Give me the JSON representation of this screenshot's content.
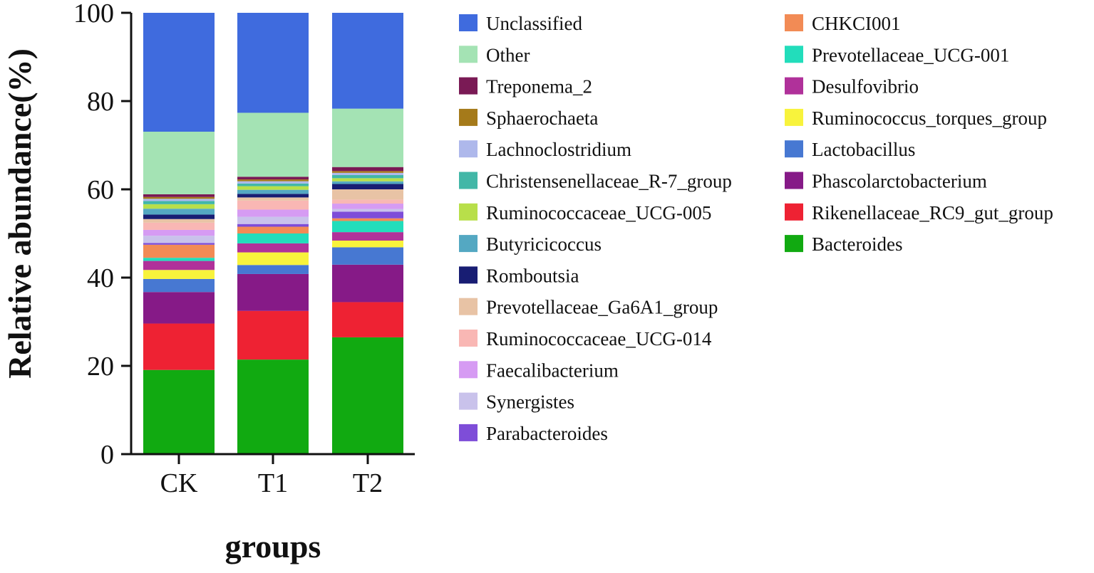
{
  "chart_data": {
    "type": "bar",
    "stacked": true,
    "xlabel": "groups",
    "ylabel": "Relative abundance(%)",
    "ylim": [
      0,
      100
    ],
    "yticks": [
      0,
      20,
      40,
      60,
      80,
      100
    ],
    "categories": [
      "CK",
      "T1",
      "T2"
    ],
    "legend_position": "right",
    "series": [
      {
        "name": "Bacteroides",
        "color": "#11AA11",
        "values": [
          18.7,
          21.0,
          26.2
        ]
      },
      {
        "name": "Rikenellaceae_RC9_gut_group",
        "color": "#EE2233",
        "values": [
          10.3,
          10.8,
          7.9
        ]
      },
      {
        "name": "Phascolarctobacterium",
        "color": "#861A87",
        "values": [
          7.0,
          8.2,
          8.4
        ]
      },
      {
        "name": "Lactobacillus",
        "color": "#4778D2",
        "values": [
          2.9,
          2.0,
          3.9
        ]
      },
      {
        "name": "Ruminococcus_torques_group",
        "color": "#F8F33C",
        "values": [
          2.0,
          2.8,
          1.5
        ]
      },
      {
        "name": "Desulfovibrio",
        "color": "#B0319A",
        "values": [
          2.0,
          2.0,
          1.9
        ]
      },
      {
        "name": "Prevotellaceae_UCG-001",
        "color": "#22DDBB",
        "values": [
          0.7,
          2.2,
          2.5
        ]
      },
      {
        "name": "CHKCI001",
        "color": "#F28B55",
        "values": [
          2.9,
          1.5,
          0.6
        ]
      },
      {
        "name": "Parabacteroides",
        "color": "#7E4DD8",
        "values": [
          0.4,
          0.6,
          1.5
        ]
      },
      {
        "name": "Synergistes",
        "color": "#C9C2EB",
        "values": [
          1.6,
          1.6,
          0.6
        ]
      },
      {
        "name": "Faecalibacterium",
        "color": "#D69BF3",
        "values": [
          1.3,
          1.6,
          1.2
        ]
      },
      {
        "name": "Ruminococcaceae_UCG-014",
        "color": "#F9B7B4",
        "values": [
          1.6,
          2.0,
          0.9
        ]
      },
      {
        "name": "Prevotellaceae_Ga6A1_group",
        "color": "#E8C3A5",
        "values": [
          0.8,
          0.7,
          2.3
        ]
      },
      {
        "name": "Romboutsia",
        "color": "#181D73",
        "values": [
          1.0,
          0.8,
          1.2
        ]
      },
      {
        "name": "Butyricicoccus",
        "color": "#54A8C2",
        "values": [
          1.3,
          0.9,
          0.6
        ]
      },
      {
        "name": "Ruminococcaceae_UCG-005",
        "color": "#B8DF4A",
        "values": [
          1.0,
          0.8,
          0.7
        ]
      },
      {
        "name": "Christensenellaceae_R-7_group",
        "color": "#42B7A7",
        "values": [
          0.7,
          0.6,
          0.7
        ]
      },
      {
        "name": "Lachnoclostridium",
        "color": "#AEB8EB",
        "values": [
          0.5,
          0.5,
          0.5
        ]
      },
      {
        "name": "Sphaerochaeta",
        "color": "#A57A1A",
        "values": [
          0.4,
          0.4,
          0.4
        ]
      },
      {
        "name": "Treponema_2",
        "color": "#7A1A55",
        "values": [
          0.6,
          0.6,
          0.9
        ]
      },
      {
        "name": "Other",
        "color": "#A4E3B4",
        "values": [
          13.9,
          14.2,
          13.1
        ]
      },
      {
        "name": "Unclassified",
        "color": "#3F6BDE",
        "values": [
          26.4,
          22.2,
          21.5
        ]
      }
    ],
    "legend_columns": [
      [
        "Unclassified",
        "Other",
        "Treponema_2",
        "Sphaerochaeta",
        "Lachnoclostridium",
        "Christensenellaceae_R-7_group",
        "Ruminococcaceae_UCG-005",
        "Butyricicoccus",
        "Romboutsia",
        "Prevotellaceae_Ga6A1_group",
        "Ruminococcaceae_UCG-014",
        "Faecalibacterium",
        "Synergistes",
        "Parabacteroides"
      ],
      [
        "CHKCI001",
        "Prevotellaceae_UCG-001",
        "Desulfovibrio",
        "Ruminococcus_torques_group",
        "Lactobacillus",
        "Phascolarctobacterium",
        "Rikenellaceae_RC9_gut_group",
        "Bacteroides"
      ]
    ]
  }
}
